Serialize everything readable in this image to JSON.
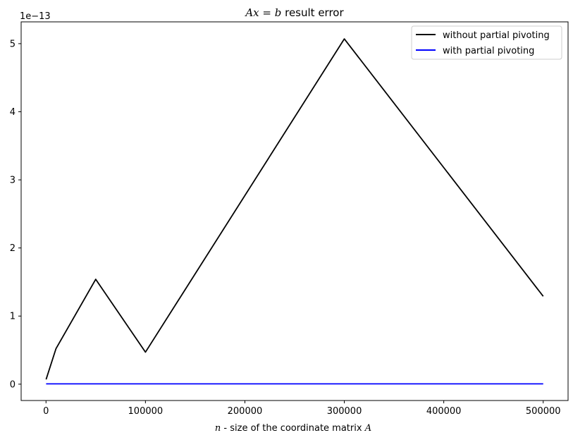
{
  "chart_data": {
    "type": "line",
    "title_math": "Ax = b",
    "title_rest": " result error",
    "xlabel_var": "n",
    "xlabel_mid": " - size of the coordinate matrix ",
    "xlabel_var2": "A",
    "ylabel": "",
    "y_offset_label": "1e−13",
    "xlim": [
      -25000,
      525000
    ],
    "ylim": [
      -0.24,
      5.32
    ],
    "x_ticks": [
      0,
      100000,
      200000,
      300000,
      400000,
      500000
    ],
    "x_tick_labels": [
      "0",
      "100000",
      "200000",
      "300000",
      "400000",
      "500000"
    ],
    "y_ticks": [
      0,
      1,
      2,
      3,
      4,
      5
    ],
    "y_tick_labels": [
      "0",
      "1",
      "2",
      "3",
      "4",
      "5"
    ],
    "grid": false,
    "legend_position": "top-right",
    "series": [
      {
        "name": "without partial pivoting",
        "color": "#000000",
        "x": [
          100,
          10000,
          50000,
          100000,
          300000,
          500000
        ],
        "y": [
          0.07,
          0.52,
          1.54,
          0.47,
          5.07,
          1.29
        ]
      },
      {
        "name": "with partial pivoting",
        "color": "#0000ff",
        "x": [
          100,
          10000,
          50000,
          100000,
          300000,
          500000
        ],
        "y": [
          0.005,
          0.005,
          0.005,
          0.005,
          0.005,
          0.005
        ]
      }
    ]
  }
}
